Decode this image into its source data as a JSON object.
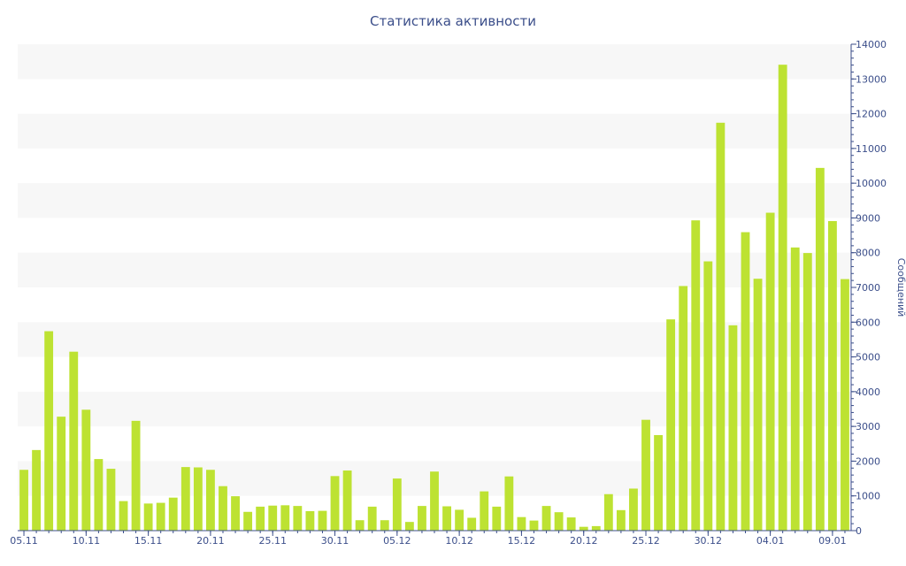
{
  "chart_data": {
    "type": "bar",
    "title": "Статистика активности",
    "ylabel": "Сообщений",
    "xlabel": "",
    "ylim": [
      0,
      14000
    ],
    "y_ticks": [
      0,
      1000,
      2000,
      3000,
      4000,
      5000,
      6000,
      7000,
      8000,
      9000,
      10000,
      11000,
      12000,
      13000,
      14000
    ],
    "x_tick_labels": [
      {
        "index": 0,
        "label": "05.11"
      },
      {
        "index": 5,
        "label": "10.11"
      },
      {
        "index": 10,
        "label": "15.11"
      },
      {
        "index": 15,
        "label": "20.11"
      },
      {
        "index": 20,
        "label": "25.11"
      },
      {
        "index": 25,
        "label": "30.11"
      },
      {
        "index": 30,
        "label": "05.12"
      },
      {
        "index": 35,
        "label": "10.12"
      },
      {
        "index": 40,
        "label": "15.12"
      },
      {
        "index": 45,
        "label": "20.12"
      },
      {
        "index": 50,
        "label": "25.12"
      },
      {
        "index": 55,
        "label": "30.12"
      },
      {
        "index": 60,
        "label": "04.01"
      },
      {
        "index": 65,
        "label": "09.01"
      }
    ],
    "categories": [
      "05.11",
      "06.11",
      "07.11",
      "08.11",
      "09.11",
      "10.11",
      "11.11",
      "12.11",
      "13.11",
      "14.11",
      "15.11",
      "16.11",
      "17.11",
      "18.11",
      "19.11",
      "20.11",
      "21.11",
      "22.11",
      "23.11",
      "24.11",
      "25.11",
      "26.11",
      "27.11",
      "28.11",
      "29.11",
      "30.11",
      "01.12",
      "02.12",
      "03.12",
      "04.12",
      "05.12",
      "06.12",
      "07.12",
      "08.12",
      "09.12",
      "10.12",
      "11.12",
      "12.12",
      "13.12",
      "14.12",
      "15.12",
      "16.12",
      "17.12",
      "18.12",
      "19.12",
      "20.12",
      "21.12",
      "22.12",
      "23.12",
      "24.12",
      "25.12",
      "26.12",
      "27.12",
      "28.12",
      "29.12",
      "30.12",
      "31.12",
      "01.01",
      "02.01",
      "03.01",
      "04.01",
      "05.01",
      "06.01",
      "07.01",
      "08.01",
      "09.01",
      "10.01"
    ],
    "values": [
      1750,
      2320,
      5740,
      3280,
      5150,
      3480,
      2060,
      1780,
      850,
      3160,
      780,
      800,
      950,
      1830,
      1820,
      1750,
      1280,
      990,
      540,
      690,
      720,
      730,
      710,
      560,
      570,
      1570,
      1730,
      300,
      690,
      300,
      1500,
      250,
      710,
      1700,
      700,
      600,
      370,
      1130,
      690,
      1560,
      390,
      290,
      710,
      530,
      380,
      110,
      130,
      1050,
      590,
      1210,
      3190,
      2750,
      6080,
      7040,
      8930,
      7750,
      11740,
      5910,
      8590,
      7250,
      9150,
      13410,
      8150,
      7990,
      10440,
      8910,
      7240
    ],
    "bar_color": "#bde232",
    "band_color": "#f7f7f7",
    "axis_color": "#3b4e8a",
    "grid": "alternating-bands",
    "legend": "none"
  }
}
